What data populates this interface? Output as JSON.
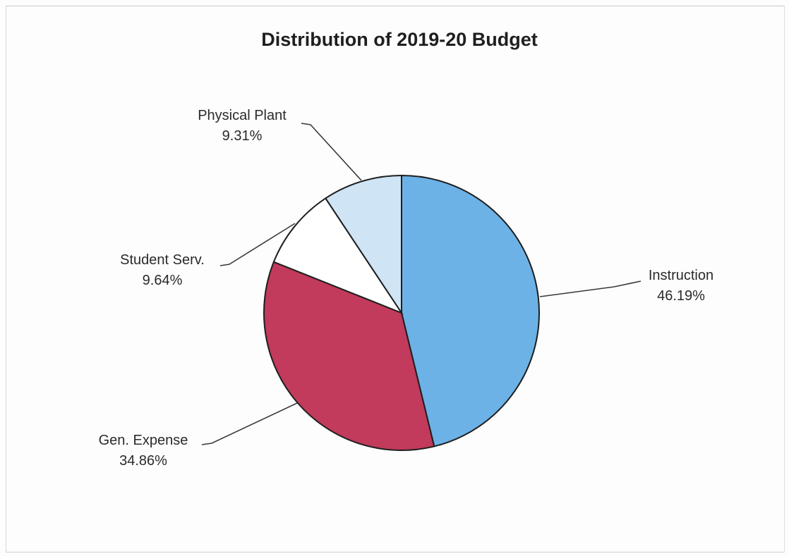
{
  "chart_data": {
    "type": "pie",
    "title": "Distribution of 2019-20 Budget",
    "start_angle_deg": 0,
    "direction": "clockwise",
    "slices": [
      {
        "label": "Instruction",
        "value": 46.19,
        "value_label": "46.19%",
        "color": "#6cb2e6"
      },
      {
        "label": "Gen. Expense",
        "value": 34.86,
        "value_label": "34.86%",
        "color": "#c23a5c"
      },
      {
        "label": "Student Serv.",
        "value": 9.64,
        "value_label": "9.64%",
        "color": "#ffffff"
      },
      {
        "label": "Physical Plant",
        "value": 9.31,
        "value_label": "9.31%",
        "color": "#cfe4f5"
      }
    ]
  }
}
